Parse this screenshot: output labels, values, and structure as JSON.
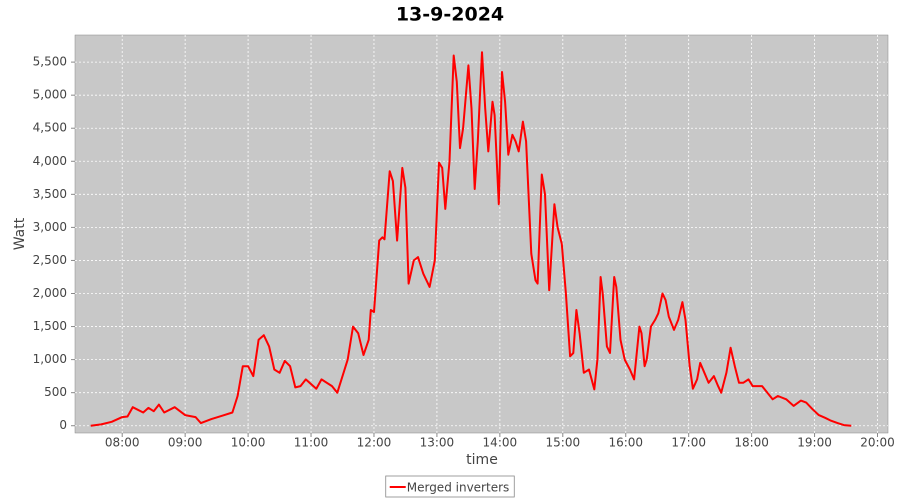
{
  "chart_data": {
    "type": "line",
    "title": "13-9-2024",
    "x_label": "time",
    "y_label": "Watt",
    "x": [
      "07:30",
      "07:40",
      "07:50",
      "08:00",
      "08:05",
      "08:10",
      "08:20",
      "08:25",
      "08:30",
      "08:35",
      "08:40",
      "08:50",
      "09:00",
      "09:10",
      "09:15",
      "09:25",
      "09:35",
      "09:45",
      "09:50",
      "09:55",
      "10:00",
      "10:05",
      "10:10",
      "10:15",
      "10:20",
      "10:25",
      "10:30",
      "10:35",
      "10:40",
      "10:45",
      "10:50",
      "10:55",
      "11:05",
      "11:10",
      "11:20",
      "11:25",
      "11:35",
      "11:40",
      "11:45",
      "11:50",
      "11:55",
      "11:57",
      "12:00",
      "12:05",
      "12:08",
      "12:10",
      "12:15",
      "12:18",
      "12:22",
      "12:27",
      "12:30",
      "12:33",
      "12:38",
      "12:42",
      "12:47",
      "12:53",
      "12:58",
      "13:02",
      "13:05",
      "13:08",
      "13:12",
      "13:16",
      "13:19",
      "13:22",
      "13:25",
      "13:30",
      "13:33",
      "13:36",
      "13:39",
      "13:43",
      "13:46",
      "13:49",
      "13:53",
      "13:55",
      "13:59",
      "14:02",
      "14:05",
      "14:08",
      "14:12",
      "14:15",
      "14:18",
      "14:22",
      "14:25",
      "14:30",
      "14:34",
      "14:36",
      "14:40",
      "14:43",
      "14:47",
      "14:52",
      "14:55",
      "14:59",
      "15:03",
      "15:07",
      "15:10",
      "15:13",
      "15:16",
      "15:20",
      "15:25",
      "15:30",
      "15:33",
      "15:36",
      "15:38",
      "15:42",
      "15:45",
      "15:49",
      "15:51",
      "15:55",
      "15:59",
      "16:04",
      "16:08",
      "16:13",
      "16:15",
      "16:18",
      "16:20",
      "16:24",
      "16:28",
      "16:31",
      "16:35",
      "16:38",
      "16:41",
      "16:46",
      "16:50",
      "16:54",
      "16:57",
      "17:01",
      "17:04",
      "17:08",
      "17:11",
      "17:15",
      "17:19",
      "17:24",
      "17:28",
      "17:31",
      "17:36",
      "17:40",
      "17:44",
      "17:48",
      "17:52",
      "17:57",
      "18:01",
      "18:10",
      "18:15",
      "18:20",
      "18:25",
      "18:33",
      "18:40",
      "18:47",
      "18:52",
      "18:58",
      "19:04",
      "19:10",
      "19:15",
      "19:22",
      "19:28",
      "19:35"
    ],
    "series": [
      {
        "name": "Merged inverters",
        "color": "#ff0000",
        "values": [
          0,
          20,
          60,
          130,
          140,
          280,
          200,
          270,
          220,
          320,
          200,
          280,
          160,
          130,
          40,
          100,
          150,
          200,
          450,
          900,
          900,
          750,
          1300,
          1370,
          1200,
          850,
          800,
          980,
          900,
          580,
          600,
          700,
          560,
          700,
          600,
          500,
          1000,
          1500,
          1400,
          1070,
          1300,
          1750,
          1720,
          2800,
          2850,
          2820,
          3850,
          3700,
          2800,
          3900,
          3600,
          2150,
          2500,
          2550,
          2300,
          2100,
          2500,
          3980,
          3900,
          3280,
          4000,
          5600,
          5200,
          4200,
          4500,
          5450,
          4800,
          3580,
          4300,
          5650,
          4800,
          4150,
          4900,
          4700,
          3350,
          5350,
          4900,
          4100,
          4400,
          4300,
          4150,
          4600,
          4300,
          2600,
          2200,
          2150,
          3800,
          3500,
          2050,
          3350,
          3000,
          2750,
          2000,
          1050,
          1100,
          1750,
          1400,
          800,
          850,
          550,
          1000,
          2250,
          2000,
          1200,
          1100,
          2250,
          2100,
          1300,
          1000,
          850,
          700,
          1500,
          1400,
          900,
          1000,
          1500,
          1600,
          1700,
          2000,
          1900,
          1650,
          1450,
          1600,
          1870,
          1600,
          900,
          560,
          700,
          950,
          800,
          650,
          750,
          600,
          500,
          800,
          1180,
          900,
          650,
          650,
          700,
          600,
          600,
          500,
          400,
          450,
          400,
          300,
          380,
          350,
          250,
          160,
          120,
          80,
          40,
          10,
          0
        ]
      }
    ],
    "xlim": [
      "07:15",
      "20:10"
    ],
    "xticks": [
      "08:00",
      "09:00",
      "10:00",
      "11:00",
      "12:00",
      "13:00",
      "14:00",
      "15:00",
      "16:00",
      "17:00",
      "18:00",
      "19:00",
      "20:00"
    ],
    "ylim": [
      -110,
      5910
    ],
    "yticks": [
      0,
      500,
      {
        "value": 1000,
        "label": "1,000"
      },
      {
        "value": 1500,
        "label": "1,500"
      },
      {
        "value": 2000,
        "label": "2,000"
      },
      {
        "value": 2500,
        "label": "2,500"
      },
      {
        "value": 3000,
        "label": "3,000"
      },
      {
        "value": 3500,
        "label": "3,500"
      },
      {
        "value": 4000,
        "label": "4,000"
      },
      {
        "value": 4500,
        "label": "4,500"
      },
      {
        "value": 5000,
        "label": "5,000"
      },
      {
        "value": 5500,
        "label": "5,500"
      }
    ],
    "grid": true,
    "legend": "bottom"
  }
}
